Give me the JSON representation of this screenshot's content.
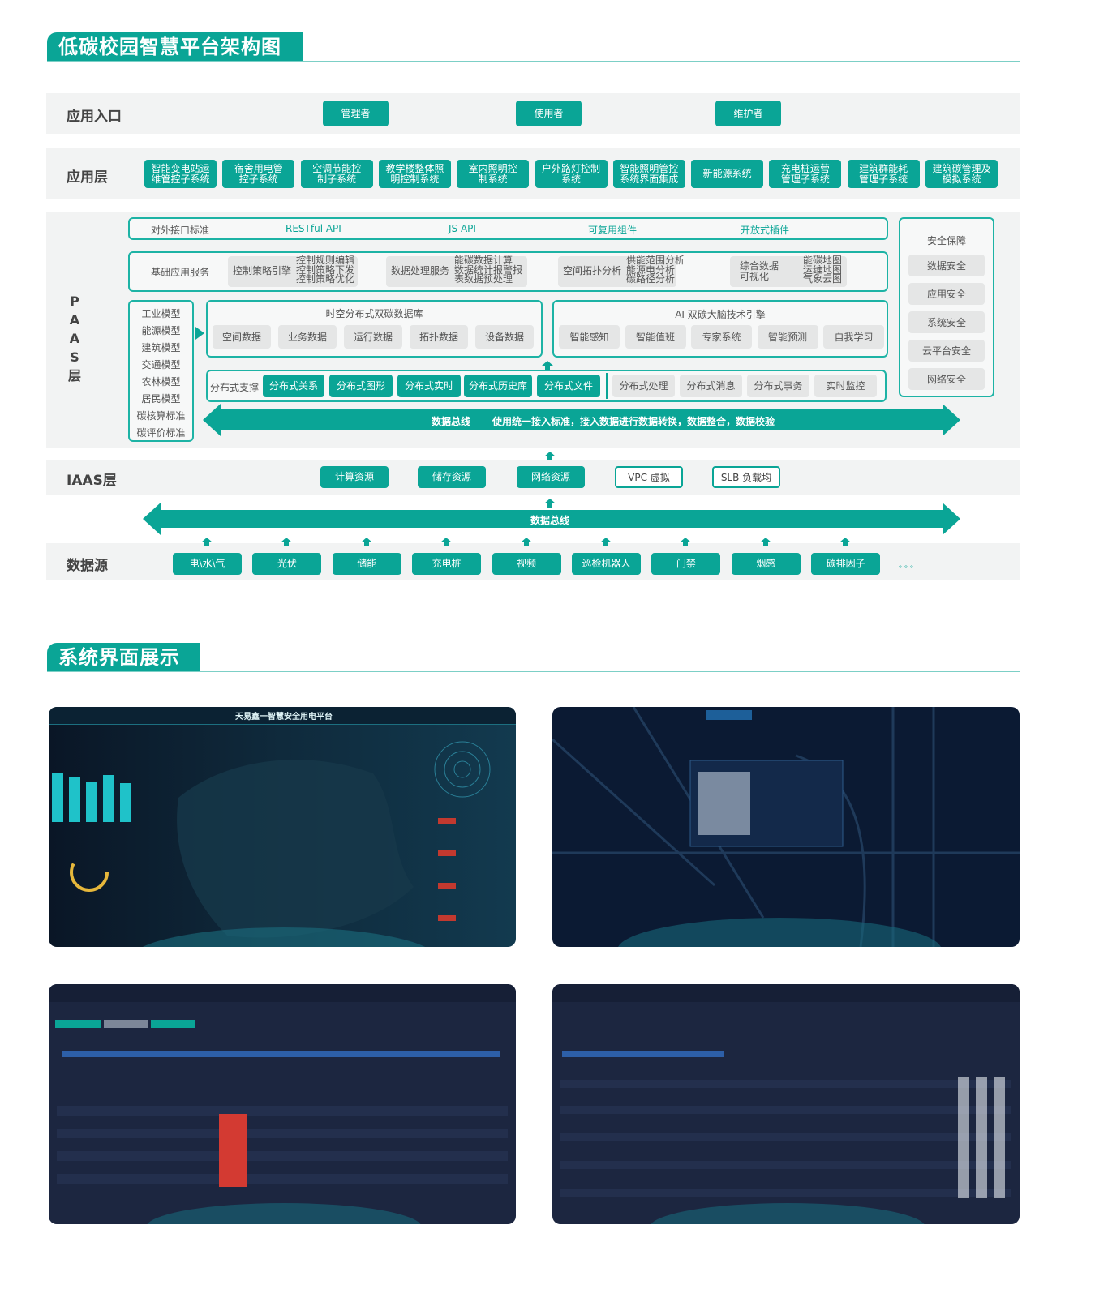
{
  "section1_title": "低碳校园智慧平台架构图",
  "section2_title": "系统界面展示",
  "colors": {
    "accent": "#0aa596",
    "band_bg": "#f2f3f3",
    "chip_bg": "#e5e6e6"
  },
  "entry": {
    "label": "应用入口",
    "items": [
      "管理者",
      "使用者",
      "维护者"
    ]
  },
  "app_layer": {
    "label": "应用层",
    "items": [
      [
        "智能变电站运",
        "维管控子系统"
      ],
      [
        "宿舍用电管",
        "控子系统"
      ],
      [
        "空调节能控",
        "制子系统"
      ],
      [
        "教学楼整体照",
        "明控制系统"
      ],
      [
        "室内照明控",
        "制系统"
      ],
      [
        "户外路灯控制",
        "系统"
      ],
      [
        "智能照明管控",
        "系统界面集成"
      ],
      [
        "新能源系统"
      ],
      [
        "充电桩运营",
        "管理子系统"
      ],
      [
        "建筑群能耗",
        "管理子系统"
      ],
      [
        "建筑碳管理及",
        "模拟系统"
      ]
    ]
  },
  "paas": {
    "label": [
      "P",
      "A",
      "A",
      "S",
      "层"
    ],
    "interface_row": {
      "label": "对外接口标准",
      "items": [
        "RESTful API",
        "JS API",
        "可复用组件",
        "开放式插件"
      ]
    },
    "base_services": {
      "label": "基础应用服务",
      "groups": [
        {
          "name": "控制策略引擎",
          "items": [
            "控制规则编辑",
            "控制策略下发",
            "控制策略优化"
          ]
        },
        {
          "name": "数据处理服务",
          "items": [
            "能碳数据计算",
            "数据统计报警报",
            "表数据预处理"
          ]
        },
        {
          "name": "空间拓扑分析",
          "items": [
            "供能范围分析",
            "能源电分析",
            "碳路径分析"
          ]
        },
        {
          "name": "综合数据\n可视化",
          "items": [
            "能碳地图",
            "运维地图",
            "气象云图"
          ]
        }
      ]
    },
    "models": [
      "工业模型",
      "能源模型",
      "建筑模型",
      "交通模型",
      "农林模型",
      "居民模型",
      "碳核算标准",
      "碳评价标准"
    ],
    "database": {
      "title": "时空分布式双碳数据库",
      "items": [
        "空间数据",
        "业务数据",
        "运行数据",
        "拓扑数据",
        "设备数据"
      ]
    },
    "ai_engine": {
      "title": "AI 双碳大脑技术引擎",
      "items": [
        "智能感知",
        "智能值班",
        "专家系统",
        "智能预测",
        "自我学习"
      ]
    },
    "distributed": {
      "label": "分布式支撑",
      "primary": [
        "分布式关系",
        "分布式图形",
        "分布式实时",
        "分布式历史库",
        "分布式文件"
      ],
      "secondary": [
        "分布式处理",
        "分布式消息",
        "分布式事务",
        "实时监控"
      ]
    },
    "bus": {
      "label": "数据总线",
      "desc": "使用统一接入标准，接入数据进行数据转换，数据整合，数据校验"
    },
    "security": {
      "title": "安全保障",
      "items": [
        "数据安全",
        "应用安全",
        "系统安全",
        "云平台安全",
        "网络安全"
      ]
    }
  },
  "iaas": {
    "label": "IAAS层",
    "primary": [
      "计算资源",
      "储存资源",
      "网络资源"
    ],
    "secondary": [
      "VPC 虚拟",
      "SLB 负载均"
    ]
  },
  "bus2": {
    "label": "数据总线"
  },
  "datasource": {
    "label": "数据源",
    "items": [
      "电\\水\\气",
      "光伏",
      "储能",
      "充电桩",
      "视频",
      "巡检机器人",
      "门禁",
      "烟感",
      "碳排因子"
    ],
    "more": "。。。"
  },
  "screenshots": {
    "shot1_title": "天易鑫一智慧安全用电平台"
  }
}
